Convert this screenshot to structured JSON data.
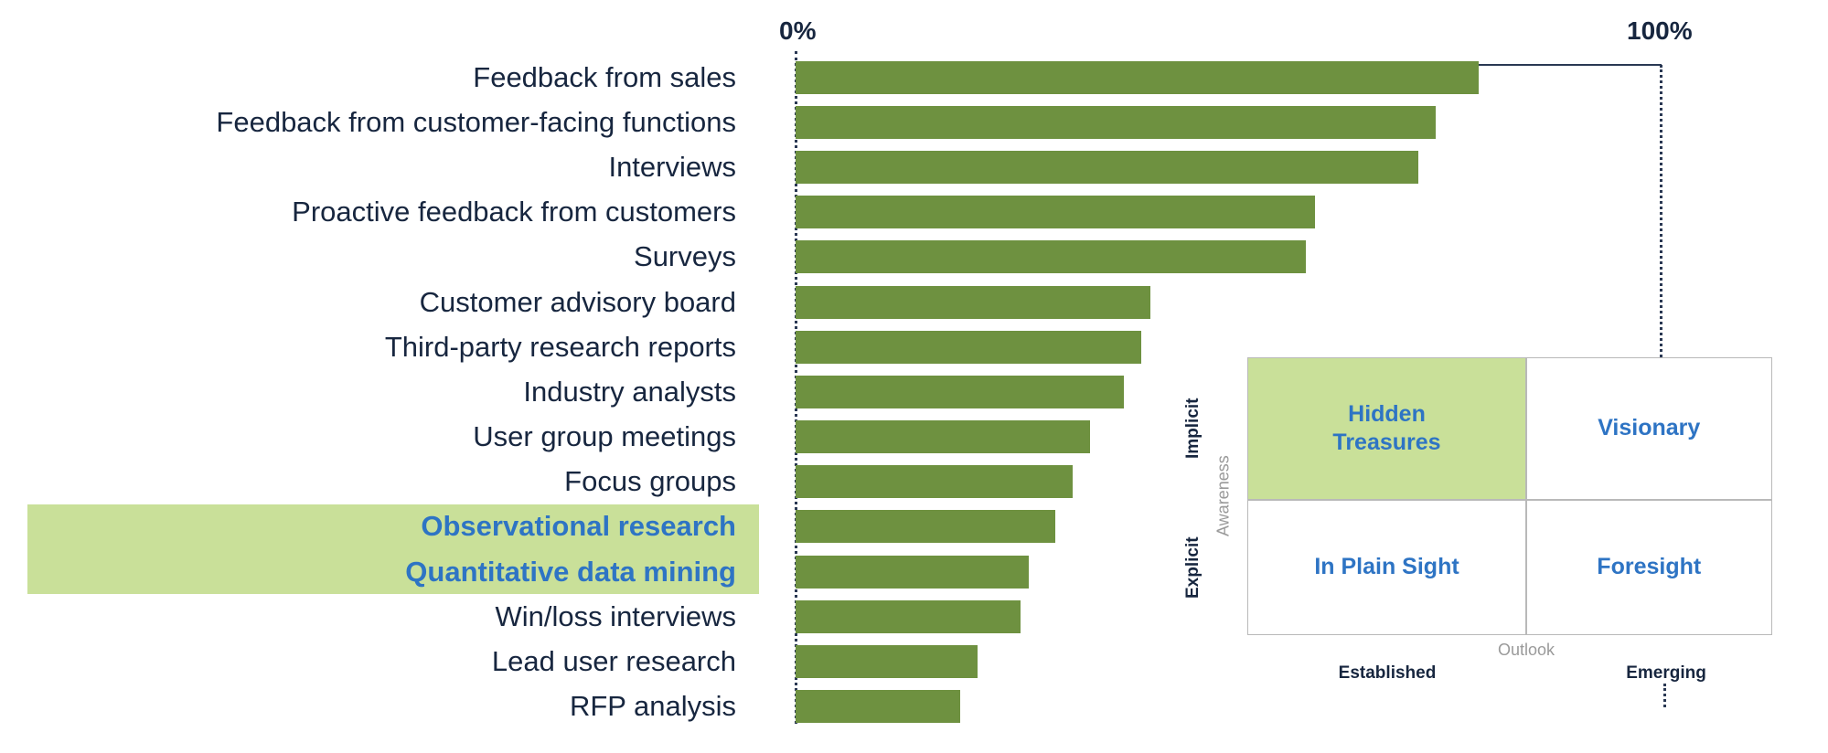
{
  "colors": {
    "bar_green": "#6e9140",
    "highlight_green": "#c9e099",
    "label_navy": "#17263f",
    "highlight_blue": "#2e74c4",
    "grid_gray": "#b9b9b9",
    "axis_title_gray": "#9a9a9a"
  },
  "axis": {
    "min_label": "0%",
    "max_label": "100%"
  },
  "chart_data": {
    "type": "bar",
    "orientation": "horizontal",
    "xlim": [
      0,
      100
    ],
    "tick_labels": [
      "0%",
      "100%"
    ],
    "categories": [
      "Feedback from sales",
      "Feedback from customer-facing functions",
      "Interviews",
      "Proactive feedback from customers",
      "Surveys",
      "Customer advisory board",
      "Third-party research reports",
      "Industry analysts",
      "User group meetings",
      "Focus groups",
      "Observational research",
      "Quantitative data mining",
      "Win/loss interviews",
      "Lead user research",
      "RFP analysis"
    ],
    "values": [
      79,
      74,
      72,
      60,
      59,
      41,
      40,
      38,
      34,
      32,
      30,
      27,
      26,
      21,
      19
    ],
    "highlighted_categories": [
      "Observational research",
      "Quantitative data mining"
    ]
  },
  "matrix": {
    "y_axis_label": "Awareness",
    "y_categories": [
      "Implicit",
      "Explicit"
    ],
    "x_axis_label": "Outlook",
    "x_categories": [
      "Established",
      "Emerging"
    ],
    "quadrants": [
      {
        "name": "Hidden Treasures",
        "highlighted": true
      },
      {
        "name": "Visionary",
        "highlighted": false
      },
      {
        "name": "In Plain Sight",
        "highlighted": false
      },
      {
        "name": "Foresight",
        "highlighted": false
      }
    ]
  }
}
